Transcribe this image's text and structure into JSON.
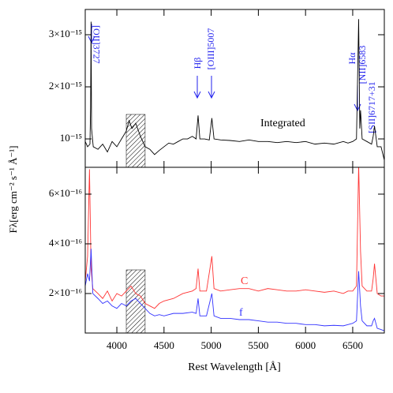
{
  "chart_data": [
    {
      "type": "line",
      "ylabel": "Fλ[erg cm⁻² s⁻¹ Å⁻¹]",
      "annotations": [
        "[OII]3727",
        "Hβ",
        "[OIII]5007",
        "Hα",
        "[NII]6583",
        "[SII]6717+31"
      ],
      "hatch": [
        4100,
        4300
      ],
      "xlim": [
        3665,
        6835
      ],
      "xticks": [
        4000,
        4500,
        5000,
        5500,
        6000,
        6500
      ],
      "ylim": [
        4.55e-16,
        3.485e-15
      ],
      "yticks": [
        {
          "value": 1e-15,
          "label": "10⁻¹⁵"
        },
        {
          "value": 2e-15,
          "label": "2×10⁻¹⁵"
        },
        {
          "value": 3e-15,
          "label": "3×10⁻¹⁵"
        }
      ],
      "x": [
        3665,
        3690,
        3715,
        3722,
        3727,
        3732,
        3750,
        3800,
        3850,
        3900,
        3950,
        4000,
        4050,
        4100,
        4130,
        4160,
        4200,
        4250,
        4300,
        4350,
        4400,
        4450,
        4500,
        4550,
        4600,
        4650,
        4700,
        4750,
        4800,
        4840,
        4861,
        4880,
        4930,
        4980,
        5007,
        5030,
        5100,
        5200,
        5300,
        5400,
        5500,
        5600,
        5700,
        5800,
        5900,
        6000,
        6100,
        6200,
        6300,
        6400,
        6450,
        6500,
        6540,
        6563,
        6575,
        6583,
        6600,
        6650,
        6700,
        6717,
        6731,
        6760,
        6800,
        6834
      ],
      "series": [
        {
          "name": "Integrated",
          "color": "#000000",
          "values": [
            9.5e-16,
            8.5e-16,
            9e-16,
            1.6e-15,
            3.25e-15,
            1.2e-15,
            8.5e-16,
            8e-16,
            9e-16,
            7.5e-16,
            9.5e-16,
            8.5e-16,
            1e-15,
            1.15e-15,
            1.35e-15,
            1.2e-15,
            1.3e-15,
            1.05e-15,
            8.5e-16,
            8e-16,
            7e-16,
            7.8e-16,
            8.5e-16,
            9.2e-16,
            9e-16,
            9.5e-16,
            1e-15,
            1e-15,
            1.05e-15,
            1e-15,
            1.45e-15,
            1e-15,
            1e-15,
            9.8e-16,
            1.4e-15,
            1e-15,
            9.8e-16,
            9.7e-16,
            9.5e-16,
            9.8e-16,
            9.5e-16,
            9.5e-16,
            9.3e-16,
            9.5e-16,
            9.3e-16,
            9.5e-16,
            9e-16,
            9.2e-16,
            9e-16,
            9.5e-16,
            9.2e-16,
            9.5e-16,
            1e-15,
            3.3e-15,
            1.2e-15,
            1.55e-15,
            1e-15,
            9.5e-16,
            9e-16,
            1.05e-15,
            1.25e-15,
            8.5e-16,
            8.5e-16,
            6e-16
          ]
        }
      ]
    },
    {
      "type": "line",
      "xlabel": "Rest Wavelength [Å]",
      "hatch": [
        4100,
        4300
      ],
      "xlim": [
        3665,
        6835
      ],
      "xticks": [
        4000,
        4500,
        5000,
        5500,
        6000,
        6500
      ],
      "ylim": [
        4.1e-17,
        7.08e-16
      ],
      "yticks": [
        {
          "value": 2e-16,
          "label": "2×10⁻¹⁶"
        },
        {
          "value": 4e-16,
          "label": "4×10⁻¹⁶"
        },
        {
          "value": 6e-16,
          "label": "6×10⁻¹⁶"
        }
      ],
      "x": [
        3665,
        3690,
        3710,
        3727,
        3745,
        3800,
        3850,
        3900,
        3950,
        4000,
        4050,
        4100,
        4150,
        4200,
        4250,
        4300,
        4350,
        4400,
        4450,
        4500,
        4600,
        4700,
        4800,
        4840,
        4861,
        4880,
        4950,
        5007,
        5030,
        5100,
        5200,
        5300,
        5400,
        5500,
        5600,
        5700,
        5800,
        5900,
        6000,
        6100,
        6200,
        6300,
        6400,
        6450,
        6500,
        6540,
        6563,
        6583,
        6600,
        6650,
        6700,
        6717,
        6731,
        6760,
        6800,
        6834
      ],
      "series": [
        {
          "name": "C",
          "color": "#ff3333",
          "values": [
            2.5e-16,
            3.5e-16,
            7e-16,
            3e-16,
            2.2e-16,
            2e-16,
            1.8e-16,
            2.1e-16,
            1.7e-16,
            2e-16,
            1.9e-16,
            2.1e-16,
            2.3e-16,
            2e-16,
            1.9e-16,
            1.6e-16,
            1.5e-16,
            1.4e-16,
            1.6e-16,
            1.7e-16,
            1.8e-16,
            2e-16,
            2.1e-16,
            2.2e-16,
            3e-16,
            2.1e-16,
            2.1e-16,
            3.5e-16,
            2.2e-16,
            2.1e-16,
            2.15e-16,
            2.2e-16,
            2.2e-16,
            2.1e-16,
            2.2e-16,
            2.15e-16,
            2.1e-16,
            2.1e-16,
            2.15e-16,
            2.1e-16,
            2.05e-16,
            2.1e-16,
            2e-16,
            2.1e-16,
            2.1e-16,
            2.3e-16,
            7.2e-16,
            3.7e-16,
            2.3e-16,
            2.1e-16,
            2.1e-16,
            2.6e-16,
            3.2e-16,
            2e-16,
            1.9e-16,
            1.9e-16
          ]
        },
        {
          "name": "f",
          "color": "#3333ff",
          "values": [
            2.3e-16,
            2.8e-16,
            2.5e-16,
            3.8e-16,
            2e-16,
            1.8e-16,
            1.6e-16,
            1.7e-16,
            1.5e-16,
            1.4e-16,
            1.6e-16,
            1.5e-16,
            1.7e-16,
            1.8e-16,
            1.6e-16,
            1.4e-16,
            1.2e-16,
            1.1e-16,
            1.15e-16,
            1.1e-16,
            1.2e-16,
            1.2e-16,
            1.25e-16,
            1.2e-16,
            1.8e-16,
            1.1e-16,
            1.1e-16,
            2e-16,
            1.1e-16,
            1e-16,
            1e-16,
            9.5e-17,
            9.5e-17,
            9e-17,
            8.5e-17,
            8.5e-17,
            8e-17,
            8e-17,
            7.5e-17,
            7.5e-17,
            7e-17,
            7.2e-17,
            7e-17,
            7.5e-17,
            8e-17,
            9e-17,
            2.9e-16,
            1.5e-16,
            9e-17,
            7e-17,
            7e-17,
            9e-17,
            1e-16,
            6e-17,
            5.5e-17,
            5e-17
          ]
        }
      ]
    }
  ]
}
